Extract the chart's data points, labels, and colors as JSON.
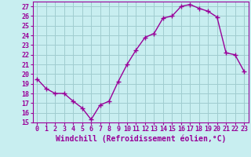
{
  "x": [
    0,
    1,
    2,
    3,
    4,
    5,
    6,
    7,
    8,
    9,
    10,
    11,
    12,
    13,
    14,
    15,
    16,
    17,
    18,
    19,
    20,
    21,
    22,
    23
  ],
  "y": [
    19.5,
    18.5,
    18.0,
    18.0,
    17.2,
    16.5,
    15.3,
    16.8,
    17.2,
    19.2,
    21.0,
    22.5,
    23.8,
    24.2,
    25.8,
    26.0,
    27.0,
    27.2,
    26.8,
    26.5,
    25.9,
    22.2,
    22.0,
    20.3
  ],
  "line_color": "#990099",
  "marker": "+",
  "marker_size": 4,
  "bg_color": "#c8eef0",
  "grid_color": "#a0ccd0",
  "xlabel": "Windchill (Refroidissement éolien,°C)",
  "ylim": [
    15,
    27.5
  ],
  "xlim": [
    -0.5,
    23.5
  ],
  "yticks": [
    15,
    16,
    17,
    18,
    19,
    20,
    21,
    22,
    23,
    24,
    25,
    26,
    27
  ],
  "xticks": [
    0,
    1,
    2,
    3,
    4,
    5,
    6,
    7,
    8,
    9,
    10,
    11,
    12,
    13,
    14,
    15,
    16,
    17,
    18,
    19,
    20,
    21,
    22,
    23
  ],
  "line_width": 1.0,
  "spine_color": "#990099",
  "tick_color": "#990099",
  "label_color": "#990099",
  "font_size": 6,
  "xlabel_fontsize": 7,
  "marker_color": "#990099"
}
